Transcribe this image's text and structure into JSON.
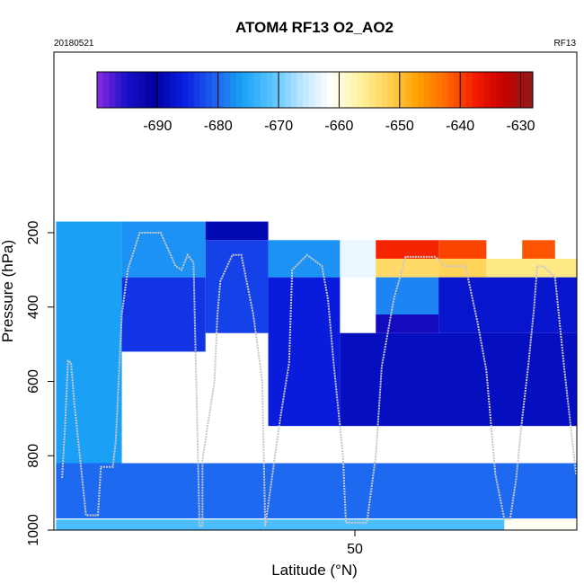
{
  "chart_data": {
    "type": "heatmap",
    "title": "ATOM4 RF13 O2_AO2",
    "date_label": "20180521",
    "flight_label": "RF13",
    "xlabel": "Latitude (°N)",
    "ylabel": "Pressure (hPa)",
    "xlim": [
      40.0,
      57.5
    ],
    "ylim": [
      1000,
      0
    ],
    "x_ticks": [
      50
    ],
    "y_ticks": [
      200,
      400,
      600,
      800,
      1000
    ],
    "grid": false,
    "colorbar": {
      "min": -700,
      "max": -628,
      "ticks": [
        -690,
        -680,
        -670,
        -660,
        -650,
        -640,
        -630
      ],
      "colors": [
        "#8a2be2",
        "#1a0fc8",
        "#0000a0",
        "#0a1ee0",
        "#1e5ff0",
        "#1aa0f5",
        "#56c3ff",
        "#b8e4ff",
        "#ffffff",
        "#fff4a0",
        "#ffd35a",
        "#ffa200",
        "#ff6a00",
        "#f51d00",
        "#c60000",
        "#8f1a1a"
      ]
    },
    "grid_rows": {
      "pressure_levels": [
        170,
        220,
        270,
        320,
        370,
        420,
        470,
        520,
        570,
        620,
        670,
        720,
        770,
        820,
        870,
        920,
        970,
        1000
      ]
    },
    "cells": [
      {
        "lat_range": [
          40.0,
          42.2
        ],
        "p_range": [
          170,
          1000
        ],
        "value": -676
      },
      {
        "lat_range": [
          42.2,
          45.0
        ],
        "p_range": [
          170,
          320
        ],
        "value": -677
      },
      {
        "lat_range": [
          42.2,
          45.0
        ],
        "p_range": [
          320,
          520
        ],
        "value": -684
      },
      {
        "lat_range": [
          45.0,
          47.1
        ],
        "p_range": [
          170,
          220
        ],
        "value": -689
      },
      {
        "lat_range": [
          45.0,
          47.1
        ],
        "p_range": [
          220,
          470
        ],
        "value": -683
      },
      {
        "lat_range": [
          47.1,
          49.5
        ],
        "p_range": [
          220,
          320
        ],
        "value": -677
      },
      {
        "lat_range": [
          47.1,
          49.5
        ],
        "p_range": [
          320,
          720
        ],
        "value": -686
      },
      {
        "lat_range": [
          49.5,
          50.7
        ],
        "p_range": [
          220,
          320
        ],
        "value": -663
      },
      {
        "lat_range": [
          50.7,
          52.8
        ],
        "p_range": [
          220,
          270
        ],
        "value": -638
      },
      {
        "lat_range": [
          50.7,
          52.8
        ],
        "p_range": [
          270,
          320
        ],
        "value": -653
      },
      {
        "lat_range": [
          50.7,
          52.8
        ],
        "p_range": [
          320,
          420
        ],
        "value": -678
      },
      {
        "lat_range": [
          50.7,
          52.8
        ],
        "p_range": [
          420,
          470
        ],
        "value": -694
      },
      {
        "lat_range": [
          52.8,
          54.4
        ],
        "p_range": [
          220,
          270
        ],
        "value": -640
      },
      {
        "lat_range": [
          52.8,
          54.4
        ],
        "p_range": [
          270,
          320
        ],
        "value": -652
      },
      {
        "lat_range": [
          55.6,
          56.7
        ],
        "p_range": [
          220,
          270
        ],
        "value": -641
      },
      {
        "lat_range": [
          54.4,
          57.5
        ],
        "p_range": [
          270,
          320
        ],
        "value": -655
      },
      {
        "lat_range": [
          52.8,
          57.5
        ],
        "p_range": [
          320,
          470
        ],
        "value": -687
      },
      {
        "lat_range": [
          49.5,
          57.5
        ],
        "p_range": [
          470,
          720
        ],
        "value": -688
      },
      {
        "lat_range": [
          40.0,
          57.5
        ],
        "p_range": [
          820,
          970
        ],
        "value": -680
      },
      {
        "lat_range": [
          40.0,
          57.5
        ],
        "p_range": [
          970,
          1000
        ],
        "value": -672
      },
      {
        "lat_range": [
          55.0,
          57.5
        ],
        "p_range": [
          970,
          1000
        ],
        "value": -661
      }
    ],
    "flight_track": {
      "color": "#c8c8c8",
      "lat": [
        40.2,
        40.3,
        40.4,
        40.5,
        40.6,
        41.0,
        41.1,
        41.4,
        41.5,
        41.9,
        42.0,
        42.2,
        42.4,
        42.8,
        43.1,
        43.5,
        44.0,
        44.2,
        44.4,
        44.6,
        44.8,
        44.9,
        44.9,
        45.3,
        45.4,
        45.5,
        45.9,
        46.2,
        46.6,
        46.9,
        47.0,
        47.5,
        47.8,
        47.9,
        48.4,
        48.9,
        49.1,
        49.3,
        49.6,
        49.7,
        49.9,
        50.4,
        50.7,
        50.9,
        51.3,
        51.7,
        51.9,
        52.1,
        52.3,
        52.7,
        53.0,
        53.4,
        53.7,
        54.1,
        54.4,
        54.7,
        55.0,
        55.2,
        55.4,
        55.6,
        55.8,
        56.0,
        56.1,
        56.3,
        56.7,
        57.0,
        57.4
      ],
      "pressure": [
        860,
        720,
        545,
        550,
        650,
        960,
        960,
        960,
        830,
        830,
        760,
        420,
        300,
        200,
        200,
        200,
        290,
        300,
        260,
        280,
        990,
        990,
        810,
        600,
        420,
        330,
        260,
        260,
        420,
        600,
        990,
        700,
        550,
        300,
        260,
        290,
        380,
        560,
        800,
        980,
        980,
        980,
        800,
        560,
        380,
        265,
        265,
        265,
        265,
        265,
        290,
        290,
        290,
        440,
        570,
        850,
        970,
        970,
        860,
        700,
        560,
        400,
        290,
        290,
        320,
        560,
        850
      ]
    }
  }
}
